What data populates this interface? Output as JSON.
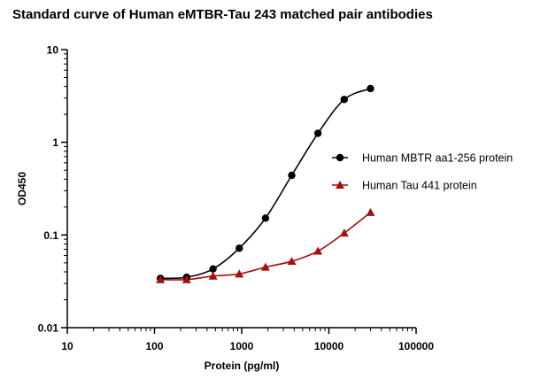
{
  "chart_data": {
    "type": "scatter",
    "title": "Standard curve of Human eMTBR-Tau 243 matched pair antibodies",
    "xlabel": "Protein (pg/ml)",
    "ylabel": "OD450",
    "xscale": "log",
    "yscale": "log",
    "xlim": [
      10,
      100000
    ],
    "ylim": [
      0.01,
      10
    ],
    "xticks": [
      10,
      100,
      1000,
      10000,
      100000
    ],
    "xtick_labels": [
      "10",
      "100",
      "1000",
      "10000",
      "100000"
    ],
    "yticks": [
      0.01,
      0.1,
      1,
      10
    ],
    "ytick_labels": [
      "0.01",
      "0.1",
      "1",
      "10"
    ],
    "grid": false,
    "legend_position": "right",
    "series": [
      {
        "name": "Human MBTR aa1-256  protein",
        "marker": "circle",
        "color": "#000000",
        "fit": "sigmoid",
        "x": [
          117,
          234,
          469,
          938,
          1875,
          3750,
          7500,
          15000,
          30000
        ],
        "y": [
          0.034,
          0.035,
          0.043,
          0.072,
          0.152,
          0.44,
          1.25,
          2.9,
          3.8
        ]
      },
      {
        "name": "Human Tau 441  protein",
        "marker": "triangle",
        "color": "#a50f0f",
        "fit": "sigmoid",
        "x": [
          117,
          234,
          469,
          938,
          1875,
          3750,
          7500,
          15000,
          30000
        ],
        "y": [
          0.033,
          0.033,
          0.036,
          0.038,
          0.045,
          0.052,
          0.067,
          0.105,
          0.175
        ]
      }
    ]
  }
}
